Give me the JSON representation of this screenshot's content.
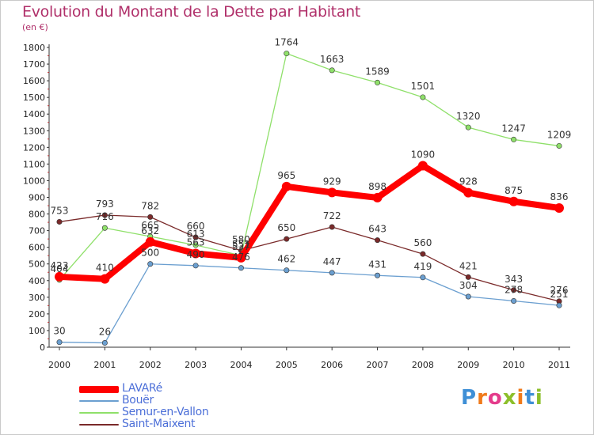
{
  "title": "Evolution du Montant de la Dette par Habitant",
  "subtitle": "(en €)",
  "logo": {
    "text": "Proxiti",
    "colors": [
      "#3e8fd6",
      "#f07a1a",
      "#e43b8b",
      "#8cbf2a",
      "#f07a1a",
      "#3e8fd6",
      "#8cbf2a"
    ]
  },
  "chart_data": {
    "type": "line",
    "title": "Evolution du Montant de la Dette par Habitant",
    "ylabel": "(en €)",
    "xlabel": "",
    "ylim": [
      0,
      1800
    ],
    "yticks": [
      0,
      100,
      200,
      300,
      400,
      500,
      600,
      700,
      800,
      900,
      1000,
      1100,
      1200,
      1300,
      1400,
      1500,
      1600,
      1700,
      1800
    ],
    "x": [
      "2000",
      "2001",
      "2002",
      "2003",
      "2004",
      "2005",
      "2006",
      "2007",
      "2008",
      "2009",
      "2010",
      "2011"
    ],
    "grid": false,
    "legend": "bottom-left",
    "series": [
      {
        "name": "Saint-Maixent",
        "color": "#7a2a2a",
        "values": [
          753,
          793,
          782,
          660,
          580,
          650,
          722,
          643,
          560,
          421,
          343,
          276
        ]
      },
      {
        "name": "Semur-en-Vallon",
        "color": "#8fe06a",
        "values": [
          404,
          716,
          665,
          613,
          551,
          1764,
          1663,
          1589,
          1501,
          1320,
          1247,
          1209
        ]
      },
      {
        "name": "Bouër",
        "color": "#6b9fd0",
        "values": [
          30,
          26,
          500,
          490,
          476,
          462,
          447,
          431,
          419,
          304,
          278,
          251
        ]
      },
      {
        "name": "LAVARé",
        "color": "#ff0000",
        "values": [
          423,
          410,
          632,
          563,
          537,
          965,
          929,
          898,
          1090,
          928,
          875,
          836
        ]
      }
    ],
    "legend_order": [
      "LAVARé",
      "Bouër",
      "Semur-en-Vallon",
      "Saint-Maixent"
    ]
  }
}
